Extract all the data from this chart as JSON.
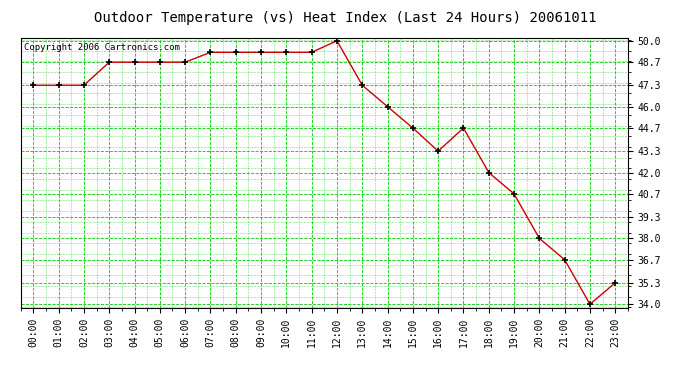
{
  "title": "Outdoor Temperature (vs) Heat Index (Last 24 Hours) 20061011",
  "copyright_text": "Copyright 2006 Cartronics.com",
  "x_labels": [
    "00:00",
    "01:00",
    "02:00",
    "03:00",
    "04:00",
    "05:00",
    "06:00",
    "07:00",
    "08:00",
    "09:00",
    "10:00",
    "11:00",
    "12:00",
    "13:00",
    "14:00",
    "15:00",
    "16:00",
    "17:00",
    "18:00",
    "19:00",
    "20:00",
    "21:00",
    "22:00",
    "23:00"
  ],
  "y_values": [
    47.3,
    47.3,
    47.3,
    48.7,
    48.7,
    48.7,
    48.7,
    49.3,
    49.3,
    49.3,
    49.3,
    49.3,
    50.0,
    47.3,
    46.0,
    44.7,
    43.3,
    44.7,
    42.0,
    40.7,
    38.0,
    36.7,
    34.0,
    35.3
  ],
  "y_min": 34.0,
  "y_max": 50.0,
  "y_ticks": [
    34.0,
    35.3,
    36.7,
    38.0,
    39.3,
    40.7,
    42.0,
    43.3,
    44.7,
    46.0,
    47.3,
    48.7,
    50.0
  ],
  "line_color": "#cc0000",
  "marker_color": "#000000",
  "bg_color": "#ffffff",
  "plot_bg_color": "#ffffff",
  "grid_color": "#00cc00",
  "title_fontsize": 10,
  "axis_label_fontsize": 7,
  "copyright_fontsize": 6.5
}
